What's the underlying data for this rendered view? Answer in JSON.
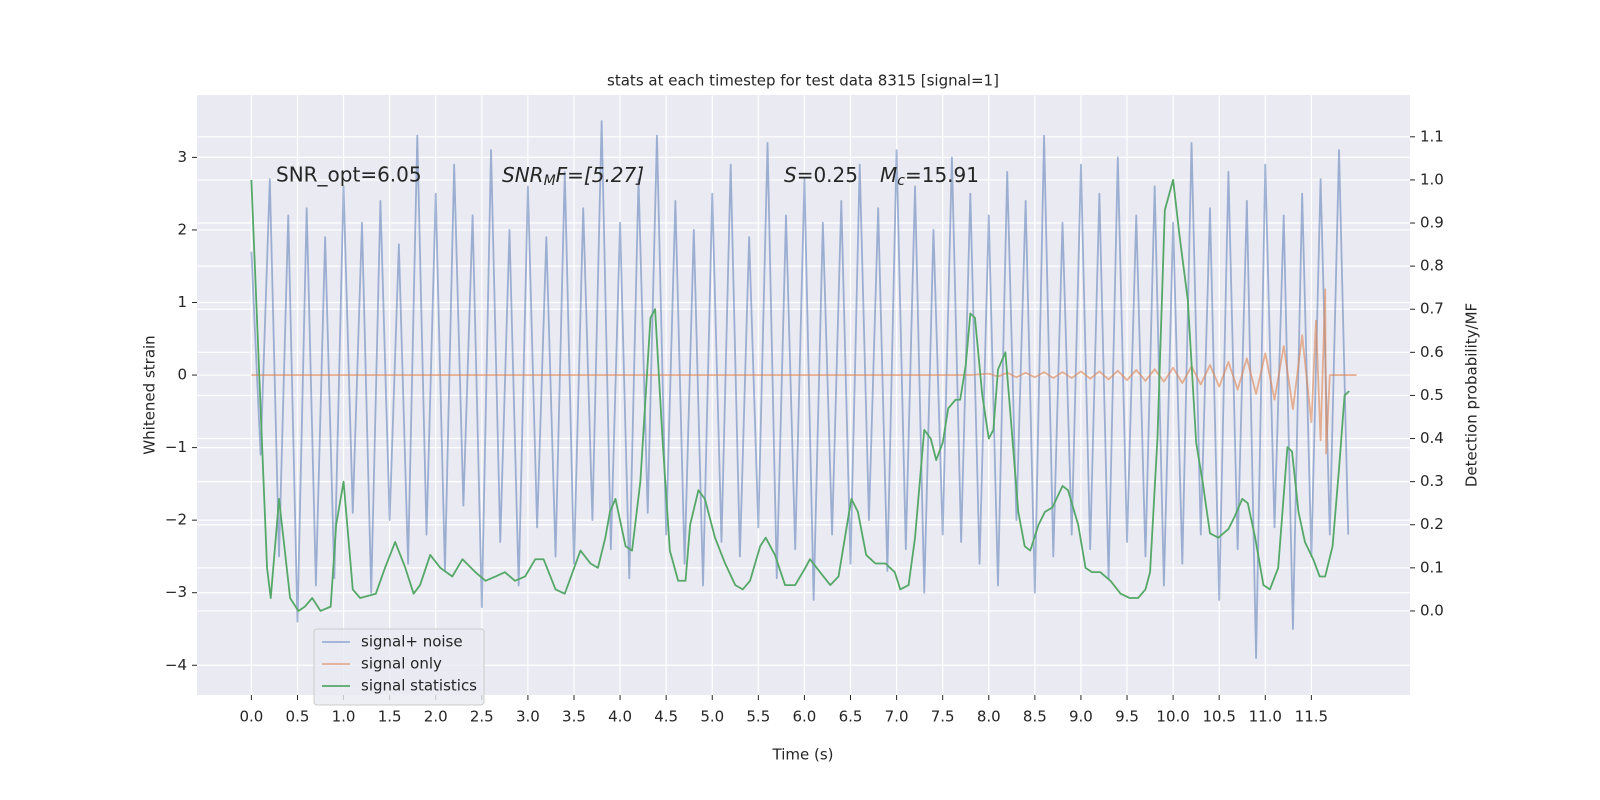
{
  "chart_data": {
    "type": "line",
    "title": "stats at each timestep for test data 8315 [signal=1]",
    "x_label": "Time (s)",
    "y_label": "Whitened strain",
    "y2_label": "Detection probability/MF",
    "annotations": {
      "snr_opt": "SNR_opt=6.05",
      "snr_mf": [
        "SNR",
        "M",
        "F=[5.27]"
      ],
      "s": [
        "S",
        "=0.25"
      ],
      "mc": [
        "M",
        "c",
        "=15.91"
      ]
    },
    "xlim": [
      -0.59,
      12.57
    ],
    "ylim": [
      -4.41,
      3.86
    ],
    "y2lim": [
      -0.195,
      1.197
    ],
    "xticks": [
      {
        "value": 0,
        "label": "0.0"
      },
      0.5,
      {
        "value": 1,
        "label": "1.0"
      },
      1.5,
      {
        "value": 2,
        "label": "2.0"
      },
      2.5,
      {
        "value": 3,
        "label": "3.0"
      },
      3.5,
      {
        "value": 4,
        "label": "4.0"
      },
      4.5,
      {
        "value": 5,
        "label": "5.0"
      },
      5.5,
      {
        "value": 6,
        "label": "6.0"
      },
      6.5,
      {
        "value": 7,
        "label": "7.0"
      },
      7.5,
      {
        "value": 8,
        "label": "8.0"
      },
      8.5,
      {
        "value": 9,
        "label": "9.0"
      },
      9.5,
      {
        "value": 10,
        "label": "10.0"
      },
      10.5,
      {
        "value": 11,
        "label": "11.0"
      },
      11.5
    ],
    "yticks": [
      {
        "value": -4,
        "label": "−4"
      },
      {
        "value": -3,
        "label": "−3"
      },
      {
        "value": -2,
        "label": "−2"
      },
      {
        "value": -1,
        "label": "−1"
      },
      0,
      1,
      2,
      3
    ],
    "y2ticks": [
      {
        "value": 0,
        "label": "0.0"
      },
      0.1,
      0.2,
      0.3,
      0.4,
      0.5,
      0.6,
      0.7,
      0.8,
      0.9,
      {
        "value": 1,
        "label": "1.0"
      },
      1.1
    ],
    "grid": true,
    "legend": "lower left",
    "series": [
      {
        "name": "signal+ noise",
        "color": "#4c72b0",
        "opacity": 0.5,
        "x": [
          0,
          0.1,
          0.2,
          0.3,
          0.4,
          0.5,
          0.6,
          0.7,
          0.8,
          0.9,
          1,
          1.1,
          1.2,
          1.3,
          1.4,
          1.5,
          1.6,
          1.7,
          1.8,
          1.9,
          2,
          2.1,
          2.2,
          2.3,
          2.4,
          2.5,
          2.6,
          2.7,
          2.8,
          2.9,
          3,
          3.1,
          3.2,
          3.3,
          3.4,
          3.5,
          3.6,
          3.7,
          3.8,
          3.9,
          4,
          4.1,
          4.2,
          4.3,
          4.4,
          4.5,
          4.6,
          4.7,
          4.8,
          4.9,
          5,
          5.1,
          5.2,
          5.3,
          5.4,
          5.5,
          5.6,
          5.7,
          5.8,
          5.9,
          6,
          6.1,
          6.2,
          6.3,
          6.4,
          6.5,
          6.6,
          6.7,
          6.8,
          6.9,
          7,
          7.1,
          7.2,
          7.3,
          7.4,
          7.5,
          7.6,
          7.7,
          7.8,
          7.9,
          8,
          8.1,
          8.2,
          8.3,
          8.4,
          8.5,
          8.6,
          8.7,
          8.8,
          8.9,
          9,
          9.1,
          9.2,
          9.3,
          9.4,
          9.5,
          9.6,
          9.7,
          9.8,
          9.9,
          10,
          10.1,
          10.2,
          10.3,
          10.4,
          10.5,
          10.6,
          10.7,
          10.8,
          10.9,
          11,
          11.1,
          11.2,
          11.3,
          11.4,
          11.5,
          11.6,
          11.7,
          11.8,
          11.9
        ],
        "values": [
          1.7,
          -1.1,
          2.7,
          -2.5,
          2.2,
          -3.4,
          2.3,
          -2.9,
          1.9,
          -2.8,
          2.6,
          -1.9,
          2.1,
          -3.0,
          2.4,
          -2.0,
          1.8,
          -2.6,
          3.3,
          -2.2,
          2.5,
          -2.7,
          2.9,
          -1.8,
          2.2,
          -3.2,
          3.1,
          -2.3,
          2.0,
          -2.9,
          2.6,
          -2.1,
          1.9,
          -2.5,
          2.8,
          -2.6,
          2.3,
          -2.0,
          3.5,
          -2.4,
          2.1,
          -2.8,
          2.7,
          -1.9,
          3.3,
          -2.2,
          2.4,
          -2.6,
          2.0,
          -2.9,
          2.5,
          -2.3,
          2.9,
          -2.5,
          1.9,
          -2.1,
          3.2,
          -2.8,
          2.2,
          -2.4,
          2.7,
          -3.1,
          2.1,
          -2.2,
          2.4,
          -2.6,
          2.9,
          -2.0,
          2.3,
          -2.7,
          3.1,
          -2.4,
          2.6,
          -3.0,
          2.0,
          -2.2,
          3.0,
          -2.3,
          2.5,
          -2.6,
          2.2,
          -2.9,
          2.8,
          -2.0,
          2.4,
          -3.0,
          3.3,
          -2.5,
          2.1,
          -2.2,
          2.9,
          -2.4,
          2.5,
          -2.8,
          3.0,
          -2.3,
          2.2,
          -2.5,
          2.6,
          -2.9,
          2.1,
          -2.6,
          3.2,
          -2.2,
          2.3,
          -3.1,
          2.8,
          -2.4,
          2.4,
          -3.9,
          2.9,
          -2.1,
          2.2,
          -3.5,
          2.5,
          -2.5,
          2.7,
          -2.2,
          3.1,
          -2.2
        ]
      },
      {
        "name": "signal only",
        "color": "#dd8452",
        "opacity": 0.6,
        "x": [
          0,
          7.8,
          8.0,
          8.1,
          8.2,
          8.3,
          8.4,
          8.5,
          8.6,
          8.7,
          8.8,
          8.9,
          9.0,
          9.1,
          9.2,
          9.3,
          9.4,
          9.5,
          9.6,
          9.7,
          9.8,
          9.9,
          10.0,
          10.1,
          10.2,
          10.3,
          10.4,
          10.5,
          10.6,
          10.7,
          10.8,
          10.9,
          11.0,
          11.1,
          11.2,
          11.3,
          11.4,
          11.5,
          11.55,
          11.6,
          11.65,
          11.66,
          11.7,
          11.99
        ],
        "values": [
          0,
          0,
          0.02,
          -0.02,
          0.03,
          -0.03,
          0.03,
          -0.03,
          0.04,
          -0.04,
          0.04,
          -0.04,
          0.05,
          -0.05,
          0.05,
          -0.06,
          0.06,
          -0.07,
          0.07,
          -0.08,
          0.08,
          -0.09,
          0.1,
          -0.11,
          0.12,
          -0.13,
          0.14,
          -0.16,
          0.18,
          -0.2,
          0.23,
          -0.26,
          0.3,
          -0.34,
          0.4,
          -0.47,
          0.55,
          -0.65,
          0.75,
          -0.9,
          1.18,
          -1.08,
          0,
          0
        ]
      },
      {
        "name": "signal statistics",
        "color": "#55a868",
        "opacity": 1,
        "axis": "y2",
        "x": [
          0,
          0.17,
          0.21,
          0.3,
          0.42,
          0.51,
          0.58,
          0.66,
          0.75,
          0.86,
          0.92,
          1.0,
          1.1,
          1.18,
          1.35,
          1.45,
          1.56,
          1.67,
          1.76,
          1.83,
          1.94,
          2.05,
          2.18,
          2.29,
          2.43,
          2.54,
          2.65,
          2.75,
          2.86,
          2.97,
          3.08,
          3.17,
          3.3,
          3.4,
          3.57,
          3.68,
          3.76,
          3.84,
          3.89,
          3.95,
          4.06,
          4.13,
          4.22,
          4.33,
          4.38,
          4.46,
          4.54,
          4.63,
          4.71,
          4.76,
          4.85,
          4.92,
          5.03,
          5.14,
          5.25,
          5.33,
          5.41,
          5.52,
          5.58,
          5.68,
          5.79,
          5.9,
          6.01,
          6.06,
          6.17,
          6.28,
          6.37,
          6.47,
          6.51,
          6.58,
          6.67,
          6.77,
          6.88,
          6.98,
          7.04,
          7.13,
          7.2,
          7.3,
          7.37,
          7.43,
          7.5,
          7.56,
          7.64,
          7.69,
          7.75,
          7.8,
          7.85,
          7.93,
          8.0,
          8.05,
          8.1,
          8.18,
          8.23,
          8.32,
          8.39,
          8.45,
          8.54,
          8.61,
          8.69,
          8.8,
          8.86,
          8.97,
          9.05,
          9.12,
          9.21,
          9.32,
          9.43,
          9.53,
          9.62,
          9.7,
          9.75,
          9.83,
          9.91,
          10.0,
          10.07,
          10.16,
          10.25,
          10.32,
          10.4,
          10.49,
          10.6,
          10.67,
          10.75,
          10.81,
          10.89,
          10.98,
          11.05,
          11.14,
          11.24,
          11.29,
          11.36,
          11.43,
          11.52,
          11.59,
          11.65,
          11.73,
          11.8,
          11.86,
          11.91
        ],
        "values": [
          1.0,
          0.1,
          0.03,
          0.26,
          0.03,
          0.0,
          0.01,
          0.03,
          0.0,
          0.01,
          0.2,
          0.3,
          0.05,
          0.03,
          0.04,
          0.1,
          0.16,
          0.1,
          0.04,
          0.06,
          0.13,
          0.1,
          0.08,
          0.12,
          0.09,
          0.07,
          0.08,
          0.09,
          0.07,
          0.08,
          0.12,
          0.12,
          0.05,
          0.04,
          0.14,
          0.11,
          0.1,
          0.17,
          0.23,
          0.26,
          0.15,
          0.14,
          0.3,
          0.68,
          0.7,
          0.4,
          0.14,
          0.07,
          0.07,
          0.2,
          0.28,
          0.26,
          0.17,
          0.11,
          0.06,
          0.05,
          0.07,
          0.15,
          0.17,
          0.13,
          0.06,
          0.06,
          0.1,
          0.12,
          0.09,
          0.06,
          0.08,
          0.21,
          0.26,
          0.23,
          0.13,
          0.11,
          0.11,
          0.09,
          0.05,
          0.06,
          0.17,
          0.42,
          0.4,
          0.35,
          0.39,
          0.47,
          0.49,
          0.49,
          0.57,
          0.69,
          0.68,
          0.5,
          0.4,
          0.42,
          0.56,
          0.6,
          0.47,
          0.23,
          0.15,
          0.14,
          0.2,
          0.23,
          0.24,
          0.29,
          0.28,
          0.2,
          0.1,
          0.09,
          0.09,
          0.07,
          0.04,
          0.03,
          0.03,
          0.05,
          0.09,
          0.4,
          0.93,
          1.0,
          0.87,
          0.72,
          0.39,
          0.3,
          0.18,
          0.17,
          0.19,
          0.22,
          0.26,
          0.25,
          0.17,
          0.06,
          0.05,
          0.1,
          0.38,
          0.37,
          0.23,
          0.16,
          0.12,
          0.08,
          0.08,
          0.15,
          0.33,
          0.5,
          0.51
        ]
      }
    ]
  }
}
